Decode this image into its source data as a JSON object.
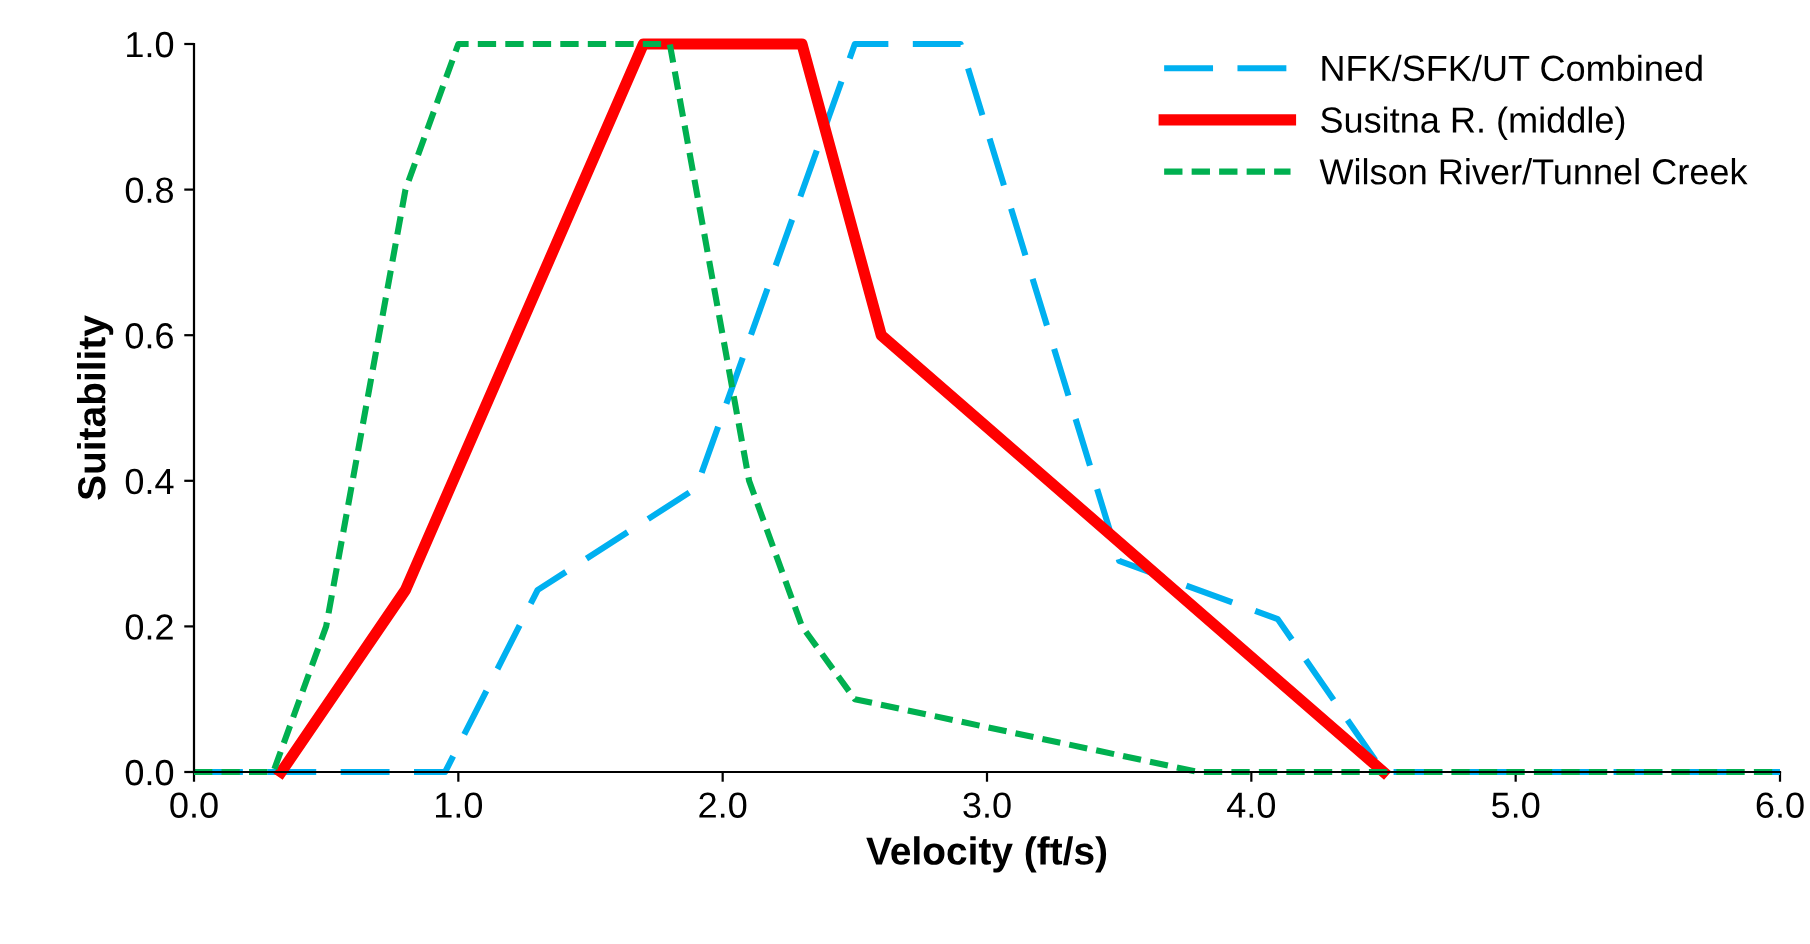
{
  "chart_data": {
    "type": "line",
    "xlabel": "Velocity (ft/s)",
    "ylabel": "Suitability",
    "xlim": [
      0,
      6
    ],
    "ylim": [
      0,
      1
    ],
    "xticks": [
      {
        "value": 0,
        "label": "0.0"
      },
      {
        "value": 1,
        "label": "1.0"
      },
      {
        "value": 2,
        "label": "2.0"
      },
      {
        "value": 3,
        "label": "3.0"
      },
      {
        "value": 4,
        "label": "4.0"
      },
      {
        "value": 5,
        "label": "5.0"
      },
      {
        "value": 6,
        "label": "6.0"
      }
    ],
    "yticks": [
      {
        "value": 0,
        "label": "0.0"
      },
      {
        "value": 0.2,
        "label": "0.2"
      },
      {
        "value": 0.4,
        "label": "0.4"
      },
      {
        "value": 0.6,
        "label": "0.6"
      },
      {
        "value": 0.8,
        "label": "0.8"
      },
      {
        "value": 1,
        "label": "1.0"
      }
    ],
    "grid": false,
    "legend": "top right",
    "series": [
      {
        "name": "NFK/SFK/UT Combined",
        "color": "#00b0f0",
        "line_style": "dashed",
        "x": [
          0,
          0.95,
          1.3,
          1.9,
          2.5,
          2.9,
          3.5,
          4.1,
          4.5,
          6
        ],
        "values": [
          0,
          0,
          0.25,
          0.39,
          1,
          1,
          0.29,
          0.21,
          0,
          0
        ]
      },
      {
        "name": "Susitna R. (middle)",
        "color": "#ff0000",
        "line_style": "solid",
        "x": [
          0.33,
          0.8,
          1.7,
          2.3,
          2.6,
          4.5
        ],
        "values": [
          0,
          0.25,
          1,
          1,
          0.6,
          0
        ]
      },
      {
        "name": "Wilson River/Tunnel Creek",
        "color": "#00b050",
        "line_style": "dotted",
        "x": [
          0,
          0.3,
          0.5,
          0.8,
          1.0,
          1.8,
          2.1,
          2.3,
          2.5,
          3.8,
          6
        ],
        "values": [
          0,
          0,
          0.2,
          0.8,
          1,
          1,
          0.4,
          0.2,
          0.1,
          0,
          0
        ]
      }
    ]
  }
}
